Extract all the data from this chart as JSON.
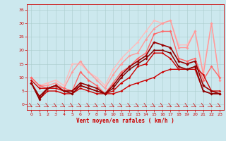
{
  "xlabel": "Vent moyen/en rafales ( km/h )",
  "xlim": [
    -0.5,
    23.5
  ],
  "ylim": [
    -2,
    37
  ],
  "yticks": [
    0,
    5,
    10,
    15,
    20,
    25,
    30,
    35
  ],
  "xticks": [
    0,
    1,
    2,
    3,
    4,
    5,
    6,
    7,
    8,
    9,
    10,
    11,
    12,
    13,
    14,
    15,
    16,
    17,
    18,
    19,
    20,
    21,
    22,
    23
  ],
  "bg_color": "#cce8ee",
  "grid_color": "#aacccc",
  "series": [
    {
      "x": [
        0,
        1,
        2,
        3,
        4,
        5,
        6,
        7,
        8,
        9,
        10,
        11,
        12,
        13,
        14,
        15,
        16,
        17,
        18,
        19,
        20,
        21,
        22,
        23
      ],
      "y": [
        9,
        6,
        6,
        6,
        5,
        5,
        7,
        6,
        5,
        4,
        4,
        5,
        7,
        8,
        9,
        10,
        12,
        13,
        13,
        13,
        14,
        11,
        5,
        5
      ],
      "color": "#cc0000",
      "lw": 1.0,
      "ms": 1.8,
      "zorder": 5
    },
    {
      "x": [
        0,
        1,
        2,
        3,
        4,
        5,
        6,
        7,
        8,
        9,
        10,
        11,
        12,
        13,
        14,
        15,
        16,
        17,
        18,
        19,
        20,
        21,
        22,
        23
      ],
      "y": [
        8,
        2,
        5,
        5,
        4,
        4,
        6,
        5,
        4,
        4,
        5,
        8,
        10,
        14,
        15,
        19,
        19,
        17,
        13,
        13,
        13,
        5,
        4,
        4
      ],
      "color": "#cc0000",
      "lw": 1.0,
      "ms": 1.8,
      "zorder": 4
    },
    {
      "x": [
        0,
        1,
        2,
        3,
        4,
        5,
        6,
        7,
        8,
        9,
        10,
        11,
        12,
        13,
        14,
        15,
        16,
        17,
        18,
        19,
        20,
        21,
        22,
        23
      ],
      "y": [
        8,
        2,
        6,
        7,
        5,
        4,
        7,
        6,
        5,
        4,
        6,
        10,
        13,
        15,
        17,
        20,
        20,
        19,
        14,
        13,
        14,
        5,
        4,
        4
      ],
      "color": "#880000",
      "lw": 1.1,
      "ms": 2.0,
      "zorder": 6
    },
    {
      "x": [
        0,
        1,
        2,
        3,
        4,
        5,
        6,
        7,
        8,
        9,
        10,
        11,
        12,
        13,
        14,
        15,
        16,
        17,
        18,
        19,
        20,
        21,
        22,
        23
      ],
      "y": [
        10,
        7,
        7,
        8,
        6,
        12,
        16,
        12,
        9,
        6,
        11,
        15,
        18,
        19,
        24,
        28,
        30,
        31,
        21,
        21,
        27,
        11,
        30,
        9
      ],
      "color": "#ff9999",
      "lw": 1.0,
      "ms": 2.0,
      "zorder": 2
    },
    {
      "x": [
        0,
        1,
        2,
        3,
        4,
        5,
        6,
        7,
        8,
        9,
        10,
        11,
        12,
        13,
        14,
        15,
        16,
        17,
        18,
        19,
        20,
        21,
        22,
        23
      ],
      "y": [
        10,
        7,
        8,
        9,
        7,
        15,
        15,
        12,
        10,
        7,
        13,
        17,
        20,
        23,
        27,
        31,
        30,
        31,
        22,
        22,
        27,
        12,
        30,
        9
      ],
      "color": "#ffbbbb",
      "lw": 1.0,
      "ms": 2.0,
      "zorder": 1
    },
    {
      "x": [
        0,
        1,
        2,
        3,
        4,
        5,
        6,
        7,
        8,
        9,
        10,
        11,
        12,
        13,
        14,
        15,
        16,
        17,
        18,
        19,
        20,
        21,
        22,
        23
      ],
      "y": [
        10,
        7,
        6,
        7,
        6,
        5,
        12,
        9,
        7,
        4,
        8,
        12,
        14,
        17,
        19,
        26,
        27,
        27,
        17,
        16,
        17,
        9,
        14,
        10
      ],
      "color": "#ff6666",
      "lw": 1.0,
      "ms": 2.0,
      "zorder": 3
    },
    {
      "x": [
        0,
        1,
        2,
        3,
        4,
        5,
        6,
        7,
        8,
        9,
        10,
        11,
        12,
        13,
        14,
        15,
        16,
        17,
        18,
        19,
        20,
        21,
        22,
        23
      ],
      "y": [
        8,
        3,
        6,
        7,
        5,
        5,
        8,
        7,
        6,
        4,
        7,
        11,
        14,
        16,
        18,
        23,
        22,
        21,
        16,
        15,
        16,
        7,
        5,
        4
      ],
      "color": "#990000",
      "lw": 1.2,
      "ms": 2.2,
      "zorder": 7
    }
  ]
}
